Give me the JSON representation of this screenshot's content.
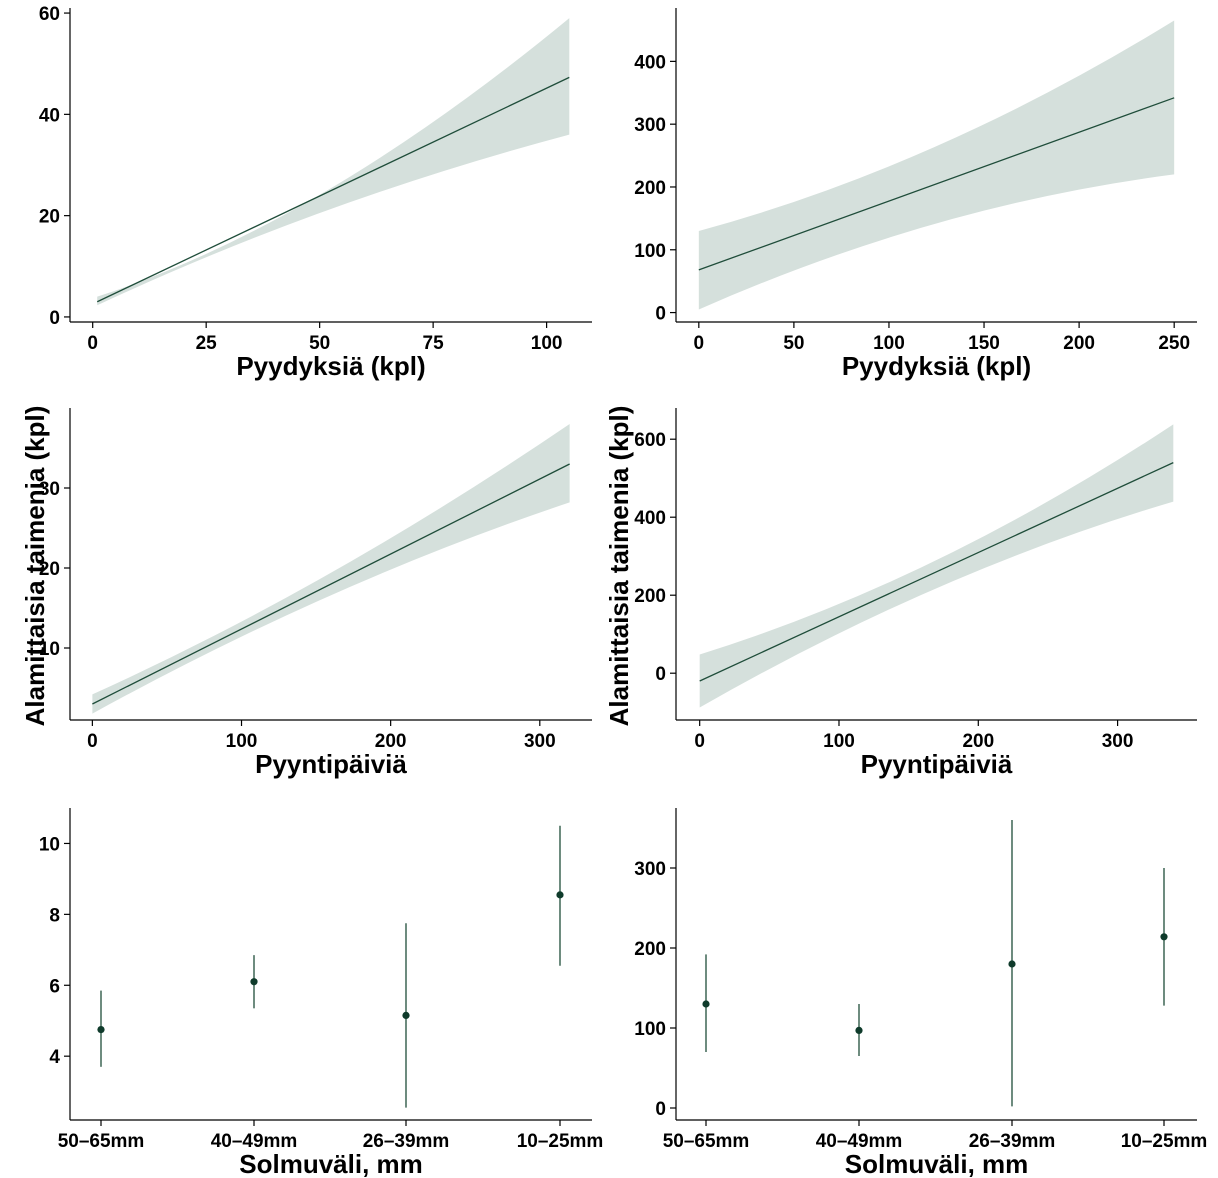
{
  "shared": {
    "ylabel": "Alamittaisia taimenia (kpl)"
  },
  "colors": {
    "line": "#1f4d3a",
    "band": "#d5e0dc",
    "point": "#0f3b2b"
  },
  "chart_data": [
    {
      "type": "line",
      "xlabel": "Pyydyksiä (kpl)",
      "xlim": [
        -5,
        110
      ],
      "ylim": [
        -1,
        61
      ],
      "xticks": [
        0,
        25,
        50,
        75,
        100
      ],
      "yticks": [
        0,
        20,
        40,
        60
      ],
      "series": [
        {
          "x": [
            1,
            105
          ],
          "y": [
            3.0,
            47.3
          ],
          "lower": [
            2.3,
            36.0
          ],
          "upper": [
            4.0,
            59.0
          ]
        }
      ],
      "band_mid": {
        "x": 50,
        "lower": 21.0,
        "upper": 24.9
      }
    },
    {
      "type": "line",
      "xlabel": "Pyydyksiä (kpl)",
      "xlim": [
        -12,
        262
      ],
      "ylim": [
        -15,
        485
      ],
      "xticks": [
        0,
        50,
        100,
        150,
        200,
        250
      ],
      "yticks": [
        0,
        100,
        200,
        300,
        400
      ],
      "series": [
        {
          "x": [
            0,
            250
          ],
          "y": [
            68,
            342
          ],
          "lower": [
            5,
            220
          ],
          "upper": [
            130,
            465
          ]
        }
      ],
      "band_mid": {
        "x": 125,
        "lower": 142,
        "upper": 265
      }
    },
    {
      "type": "line",
      "xlabel": "Pyyntipäiviä",
      "xlim": [
        -15,
        335
      ],
      "ylim": [
        1,
        40
      ],
      "xticks": [
        0,
        100,
        200,
        300
      ],
      "yticks": [
        10,
        20,
        30
      ],
      "series": [
        {
          "x": [
            0,
            320
          ],
          "y": [
            3.0,
            33.0
          ],
          "lower": [
            1.8,
            28.2
          ],
          "upper": [
            4.2,
            38.0
          ]
        }
      ],
      "band_mid": {
        "x": 160,
        "lower": 16.6,
        "upper": 19.4
      }
    },
    {
      "type": "line",
      "xlabel": "Pyyntipäiviä",
      "xlim": [
        -17,
        357
      ],
      "ylim": [
        -120,
        680
      ],
      "xticks": [
        0,
        100,
        200,
        300
      ],
      "yticks": [
        0,
        200,
        400,
        600
      ],
      "series": [
        {
          "x": [
            0,
            340
          ],
          "y": [
            -20,
            540
          ],
          "lower": [
            -88,
            440
          ],
          "upper": [
            48,
            638
          ]
        }
      ],
      "band_mid": {
        "x": 170,
        "lower": 218,
        "upper": 290
      }
    },
    {
      "type": "scatter",
      "xlabel": "Solmuväli, mm",
      "categories": [
        "50–65mm",
        "40–49mm",
        "26–39mm",
        "10–25mm"
      ],
      "ylim": [
        2.2,
        11.0
      ],
      "yticks": [
        4,
        6,
        8,
        10
      ],
      "series": [
        {
          "values": [
            4.75,
            6.1,
            5.15,
            8.55
          ],
          "lower": [
            3.7,
            5.35,
            2.55,
            6.55
          ],
          "upper": [
            5.85,
            6.85,
            7.75,
            10.5
          ]
        }
      ]
    },
    {
      "type": "scatter",
      "xlabel": "Solmuväli, mm",
      "categories": [
        "50–65mm",
        "40–49mm",
        "26–39mm",
        "10–25mm"
      ],
      "ylim": [
        -15,
        375
      ],
      "yticks": [
        0,
        100,
        200,
        300
      ],
      "series": [
        {
          "values": [
            130,
            97,
            180,
            214
          ],
          "lower": [
            70,
            65,
            2,
            128
          ],
          "upper": [
            192,
            130,
            360,
            300
          ]
        }
      ]
    }
  ]
}
